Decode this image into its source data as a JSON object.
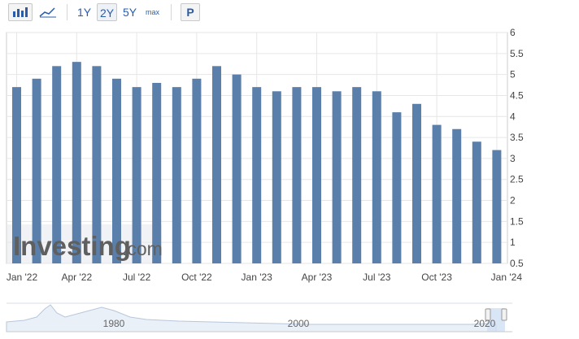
{
  "toolbar": {
    "icons": [
      "bar-chart-icon",
      "area-chart-icon"
    ],
    "ranges": [
      "1Y",
      "2Y",
      "5Y",
      "max"
    ],
    "active_range": "2Y",
    "p_label": "P"
  },
  "watermark": {
    "brand": "Investing",
    "suffix": ".com"
  },
  "chart_data": {
    "type": "bar",
    "categories": [
      "Jan '22",
      "Feb '22",
      "Mar '22",
      "Apr '22",
      "May '22",
      "Jun '22",
      "Jul '22",
      "Aug '22",
      "Sep '22",
      "Oct '22",
      "Nov '22",
      "Dec '22",
      "Jan '23",
      "Feb '23",
      "Mar '23",
      "Apr '23",
      "May '23",
      "Jun '23",
      "Jul '23",
      "Aug '23",
      "Sep '23",
      "Oct '23",
      "Nov '23",
      "Dec '23",
      "Jan '24"
    ],
    "values": [
      4.7,
      4.9,
      5.2,
      5.3,
      5.2,
      4.9,
      4.7,
      4.8,
      4.7,
      4.9,
      5.2,
      5.0,
      4.7,
      4.6,
      4.7,
      4.7,
      4.6,
      4.7,
      4.6,
      4.1,
      4.3,
      3.8,
      3.7,
      3.4,
      3.2
    ],
    "x_tick_labels": [
      "Jan '22",
      "Apr '22",
      "Jul '22",
      "Oct '22",
      "Jan '23",
      "Apr '23",
      "Jul '23",
      "Oct '23",
      "Jan '24"
    ],
    "y_tick_labels": [
      "0.5",
      "1",
      "1.5",
      "2",
      "2.5",
      "3",
      "3.5",
      "4",
      "4.5",
      "5",
      "5.5",
      "6"
    ],
    "ylim": [
      0.5,
      6
    ],
    "grid": true,
    "bar_color": "#5b7fab",
    "title": "",
    "xlabel": "",
    "ylabel": ""
  },
  "navigator": {
    "labels": [
      "1980",
      "2000",
      "2020"
    ]
  }
}
